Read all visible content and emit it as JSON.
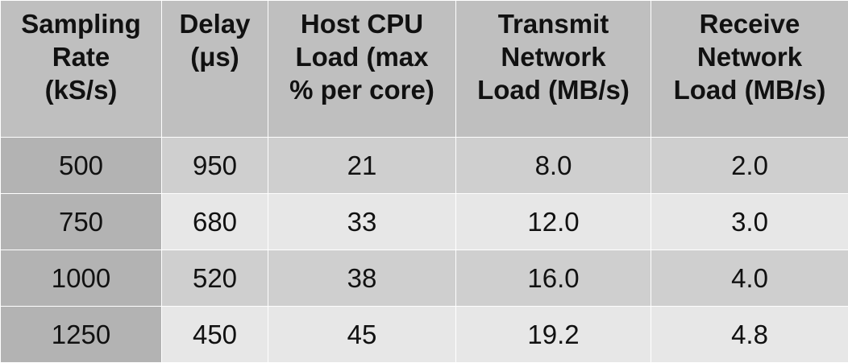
{
  "table": {
    "header": [
      [
        "Sampling",
        "Rate",
        "(kS/s)"
      ],
      [
        "Delay",
        "(μs)"
      ],
      [
        "Host CPU",
        "Load (max",
        "% per core)"
      ],
      [
        "Transmit",
        "Network",
        "Load (MB/s)"
      ],
      [
        "Receive",
        "Network",
        "Load (MB/s)"
      ]
    ],
    "rows": [
      [
        "500",
        "950",
        "21",
        "8.0",
        "2.0"
      ],
      [
        "750",
        "680",
        "33",
        "12.0",
        "3.0"
      ],
      [
        "1000",
        "520",
        "38",
        "16.0",
        "4.0"
      ],
      [
        "1250",
        "450",
        "45",
        "19.2",
        "4.8"
      ]
    ]
  }
}
